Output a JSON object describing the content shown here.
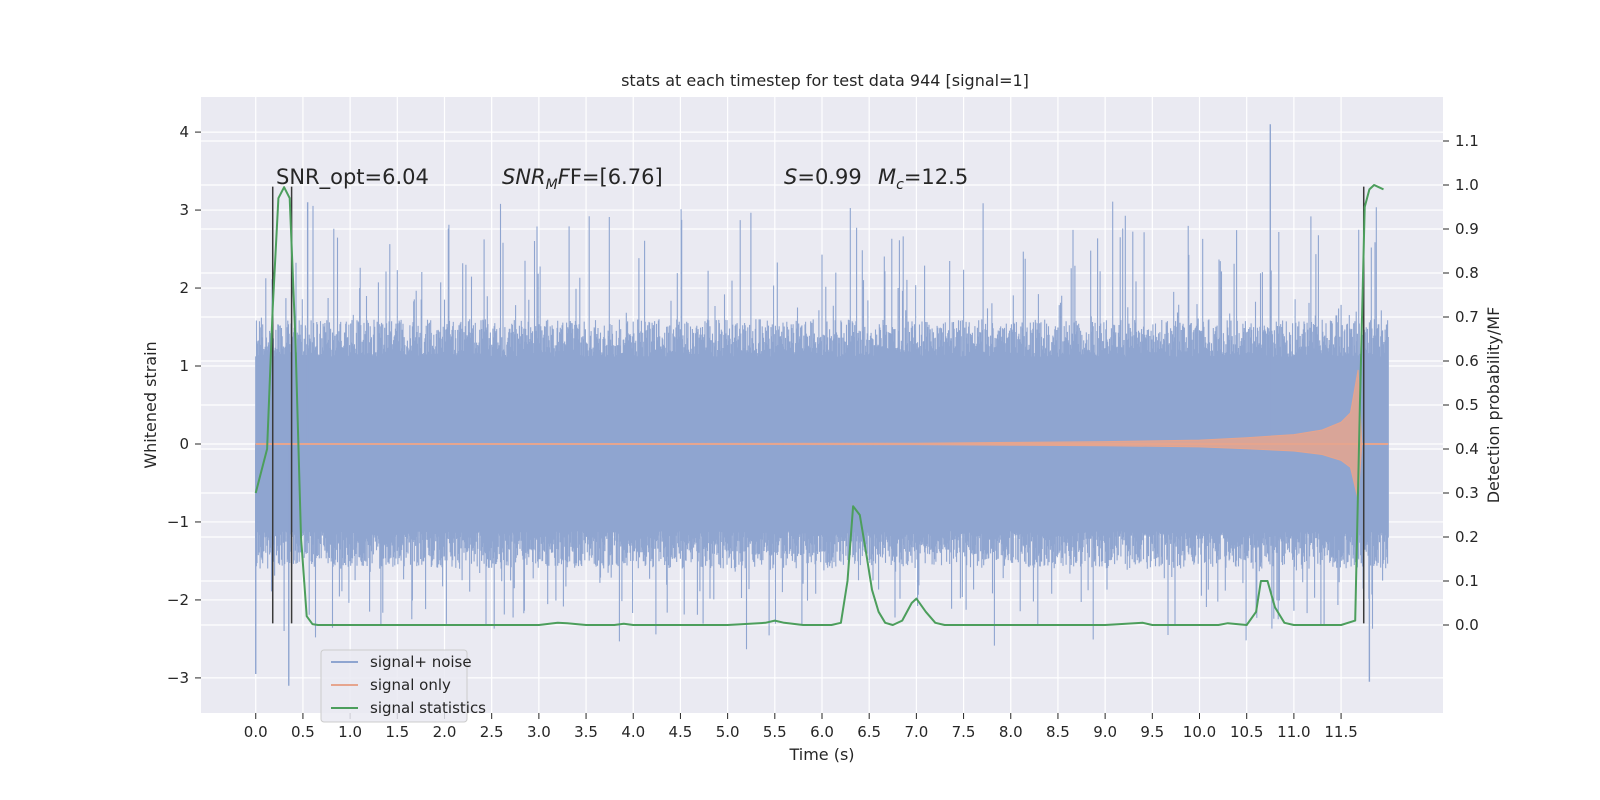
{
  "chart_data": {
    "type": "line",
    "title": "stats at each timestep for test data 944 [signal=1]",
    "xlabel": "Time (s)",
    "ylabel": "Whitened strain",
    "ylabel_right": "Detection probability/MF",
    "xlim": [
      -0.58,
      12.58
    ],
    "ylim": [
      -3.45,
      4.45
    ],
    "ylim_right": [
      -0.2,
      1.2
    ],
    "x_ticks": [
      "0.0",
      "0.5",
      "1.0",
      "1.5",
      "2.0",
      "2.5",
      "3.0",
      "3.5",
      "4.0",
      "4.5",
      "5.0",
      "5.5",
      "6.0",
      "6.5",
      "7.0",
      "7.5",
      "8.0",
      "8.5",
      "9.0",
      "9.5",
      "10.0",
      "10.5",
      "11.0",
      "11.5"
    ],
    "y_ticks": [
      "−3",
      "−2",
      "−1",
      "0",
      "1",
      "2",
      "3",
      "4"
    ],
    "y_ticks_right": [
      "0.0",
      "0.1",
      "0.2",
      "0.3",
      "0.4",
      "0.5",
      "0.6",
      "0.7",
      "0.8",
      "0.9",
      "1.0",
      "1.1"
    ],
    "grid": true,
    "legend_position": "lower-left",
    "annotations": {
      "snr_opt": "SNR_opt=6.04",
      "snr_mf_base": "SNR",
      "snr_mf_sub": "M",
      "snr_mf_rest": "F=[6.76]",
      "s_sym": "S",
      "s_val": "=0.99",
      "mc_sym": "M",
      "mc_sub": "c",
      "mc_val": "=12.5"
    },
    "series": [
      {
        "name": "signal+ noise",
        "color": "#8fa5d0",
        "x_range": [
          0.0,
          12.0
        ],
        "envelope": 1.6,
        "spike_max": 4.1,
        "spike_min": -3.05
      },
      {
        "name": "signal only",
        "color": "#e6a58e",
        "x": [
          0.0,
          7.0,
          8.0,
          9.0,
          10.0,
          10.5,
          11.0,
          11.3,
          11.5,
          11.6,
          11.68,
          11.72
        ],
        "amplitude": [
          0.0,
          0.01,
          0.02,
          0.03,
          0.05,
          0.08,
          0.12,
          0.18,
          0.28,
          0.4,
          0.95,
          0.0
        ]
      },
      {
        "name": "signal statistics",
        "color": "#4c9e5c",
        "axis": "right",
        "x": [
          0.0,
          0.12,
          0.18,
          0.24,
          0.3,
          0.36,
          0.42,
          0.48,
          0.54,
          0.6,
          0.66,
          0.8,
          1.0,
          2.0,
          3.0,
          3.2,
          3.3,
          3.5,
          3.8,
          3.9,
          4.0,
          4.2,
          5.0,
          5.4,
          5.5,
          5.6,
          5.8,
          6.0,
          6.1,
          6.2,
          6.27,
          6.33,
          6.4,
          6.47,
          6.53,
          6.6,
          6.67,
          6.75,
          6.85,
          6.95,
          7.0,
          7.1,
          7.2,
          7.3,
          7.4,
          8.0,
          9.0,
          9.4,
          9.5,
          10.2,
          10.3,
          10.5,
          10.6,
          10.65,
          10.72,
          10.8,
          10.9,
          11.0,
          11.5,
          11.65,
          11.7,
          11.75,
          11.8,
          11.85,
          11.9,
          11.95
        ],
        "values": [
          0.3,
          0.4,
          0.72,
          0.97,
          0.995,
          0.97,
          0.65,
          0.2,
          0.02,
          0.002,
          0.0,
          0.0,
          0.0,
          0.0,
          0.0,
          0.005,
          0.004,
          0.0,
          0.0,
          0.003,
          0.0,
          0.0,
          0.0,
          0.005,
          0.01,
          0.005,
          0.0,
          0.0,
          0.0,
          0.005,
          0.1,
          0.27,
          0.25,
          0.16,
          0.08,
          0.03,
          0.005,
          0.0,
          0.01,
          0.05,
          0.06,
          0.03,
          0.005,
          0.0,
          0.0,
          0.0,
          0.0,
          0.005,
          0.0,
          0.0,
          0.004,
          0.0,
          0.03,
          0.1,
          0.1,
          0.04,
          0.005,
          0.0,
          0.0,
          0.01,
          0.5,
          0.95,
          0.99,
          1.0,
          0.995,
          0.99
        ]
      }
    ],
    "vertical_markers": [
      {
        "x": 0.18,
        "y_top": 3.3,
        "y_bottom": -2.3,
        "color": "#3a3a3a"
      },
      {
        "x": 0.38,
        "y_top": 3.3,
        "y_bottom": -2.3,
        "color": "#3a3a3a"
      },
      {
        "x": 11.74,
        "y_top": 3.3,
        "y_bottom": -2.3,
        "color": "#3a3a3a"
      }
    ]
  }
}
